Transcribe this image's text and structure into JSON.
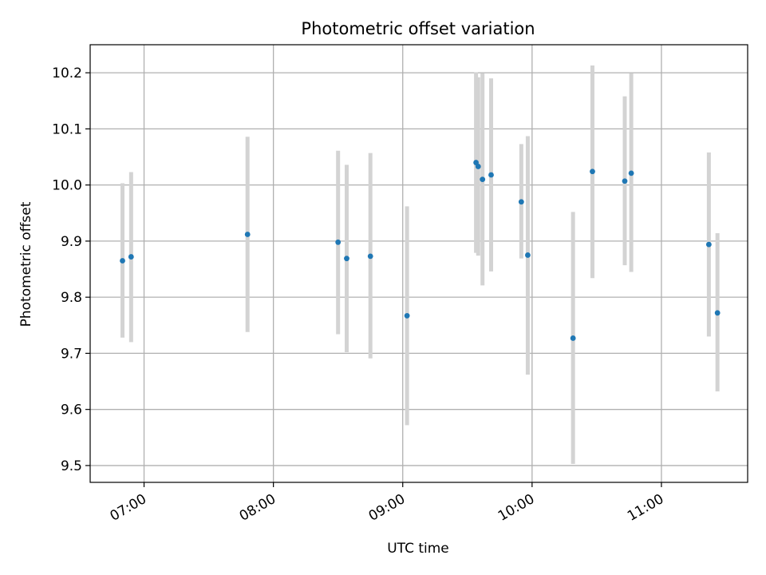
{
  "chart_data": {
    "type": "scatter",
    "title": "Photometric offset variation",
    "xlabel": "UTC time",
    "ylabel": "Photometric offset",
    "xlim": [
      "06:35",
      "11:40"
    ],
    "ylim": [
      9.47,
      10.25
    ],
    "x_ticks": [
      "07:00",
      "08:00",
      "09:00",
      "10:00",
      "11:00"
    ],
    "y_ticks": [
      "9.5",
      "9.6",
      "9.7",
      "9.8",
      "9.9",
      "10.0",
      "10.1",
      "10.2"
    ],
    "grid": true,
    "colors": {
      "point": "#1f77b4",
      "errorbar": "#d3d3d3",
      "grid": "#b0b0b0"
    },
    "points": [
      {
        "x": "06:50",
        "y": 9.865,
        "ylo": 9.728,
        "yhi": 10.003
      },
      {
        "x": "06:54",
        "y": 9.872,
        "ylo": 9.72,
        "yhi": 10.023
      },
      {
        "x": "07:48",
        "y": 9.912,
        "ylo": 9.738,
        "yhi": 10.086
      },
      {
        "x": "08:30",
        "y": 9.898,
        "ylo": 9.734,
        "yhi": 10.061
      },
      {
        "x": "08:34",
        "y": 9.869,
        "ylo": 9.702,
        "yhi": 10.036
      },
      {
        "x": "08:45",
        "y": 9.873,
        "ylo": 9.691,
        "yhi": 10.057
      },
      {
        "x": "09:02",
        "y": 9.767,
        "ylo": 9.572,
        "yhi": 9.962
      },
      {
        "x": "09:34",
        "y": 10.04,
        "ylo": 9.879,
        "yhi": 10.201
      },
      {
        "x": "09:35",
        "y": 10.033,
        "ylo": 9.874,
        "yhi": 10.192
      },
      {
        "x": "09:37",
        "y": 10.01,
        "ylo": 9.821,
        "yhi": 10.199
      },
      {
        "x": "09:41",
        "y": 10.018,
        "ylo": 9.846,
        "yhi": 10.19
      },
      {
        "x": "09:55",
        "y": 9.97,
        "ylo": 9.869,
        "yhi": 10.073
      },
      {
        "x": "09:58",
        "y": 9.875,
        "ylo": 9.662,
        "yhi": 10.087
      },
      {
        "x": "10:19",
        "y": 9.727,
        "ylo": 9.503,
        "yhi": 9.952
      },
      {
        "x": "10:28",
        "y": 10.024,
        "ylo": 9.834,
        "yhi": 10.213
      },
      {
        "x": "10:43",
        "y": 10.007,
        "ylo": 9.857,
        "yhi": 10.158
      },
      {
        "x": "10:46",
        "y": 10.021,
        "ylo": 9.845,
        "yhi": 10.199
      },
      {
        "x": "11:22",
        "y": 9.894,
        "ylo": 9.73,
        "yhi": 10.058
      },
      {
        "x": "11:26",
        "y": 9.772,
        "ylo": 9.632,
        "yhi": 9.914
      }
    ]
  }
}
